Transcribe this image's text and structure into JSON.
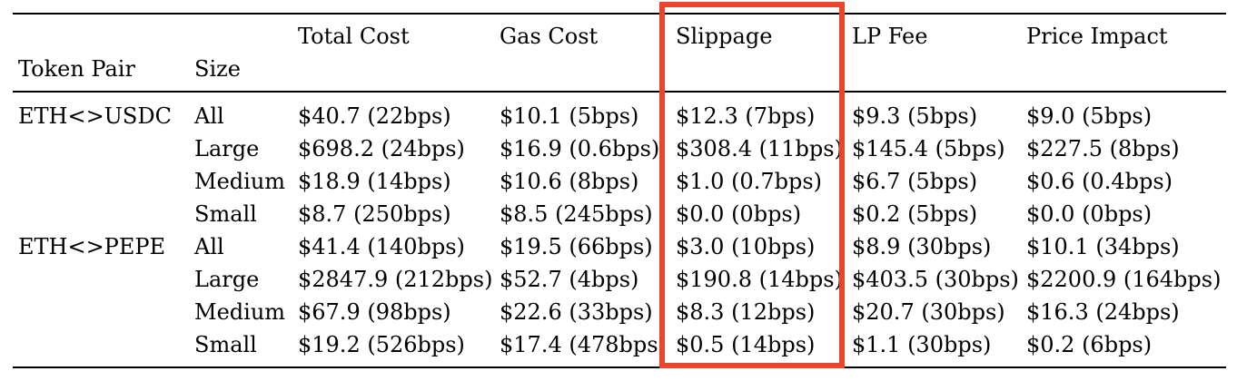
{
  "table": {
    "headers": [
      "Token Pair",
      "Size",
      "Total Cost",
      "Gas Cost",
      "Slippage",
      "LP Fee",
      "Price Impact"
    ],
    "highlight": {
      "column": "Slippage",
      "color": "#e8452c"
    },
    "rows": [
      {
        "pair": "ETH<>USDC",
        "size": "All",
        "total": "$40.7 (22bps)",
        "gas": "$10.1 (5bps)",
        "slip": "$12.3 (7bps)",
        "lp": "$9.3 (5bps)",
        "impact": "$9.0 (5bps)"
      },
      {
        "pair": "",
        "size": "Large",
        "total": "$698.2 (24bps)",
        "gas": "$16.9 (0.6bps)",
        "slip": "$308.4 (11bps)",
        "lp": "$145.4 (5bps)",
        "impact": "$227.5 (8bps)"
      },
      {
        "pair": "",
        "size": "Medium",
        "total": "$18.9 (14bps)",
        "gas": "$10.6 (8bps)",
        "slip": "$1.0 (0.7bps)",
        "lp": "$6.7 (5bps)",
        "impact": "$0.6 (0.4bps)"
      },
      {
        "pair": "",
        "size": "Small",
        "total": "$8.7 (250bps)",
        "gas": "$8.5 (245bps)",
        "slip": "$0.0 (0bps)",
        "lp": "$0.2 (5bps)",
        "impact": "$0.0 (0bps)"
      },
      {
        "pair": "ETH<>PEPE",
        "size": "All",
        "total": "$41.4 (140bps)",
        "gas": "$19.5 (66bps)",
        "slip": "$3.0 (10bps)",
        "lp": "$8.9 (30bps)",
        "impact": "$10.1 (34bps)"
      },
      {
        "pair": "",
        "size": "Large",
        "total": "$2847.9 (212bps)",
        "gas": "$52.7 (4bps)",
        "slip": "$190.8 (14bps)",
        "lp": "$403.5 (30bps)",
        "impact": "$2200.9 (164bps)"
      },
      {
        "pair": "",
        "size": "Medium",
        "total": "$67.9 (98bps)",
        "gas": "$22.6 (33bps)",
        "slip": "$8.3 (12bps)",
        "lp": "$20.7 (30bps)",
        "impact": "$16.3 (24bps)"
      },
      {
        "pair": "",
        "size": "Small",
        "total": "$19.2 (526bps)",
        "gas": "$17.4 (478bps",
        "slip": "$0.5 (14bps)",
        "lp": "$1.1 (30bps)",
        "impact": "$0.2 (6bps)"
      }
    ]
  }
}
